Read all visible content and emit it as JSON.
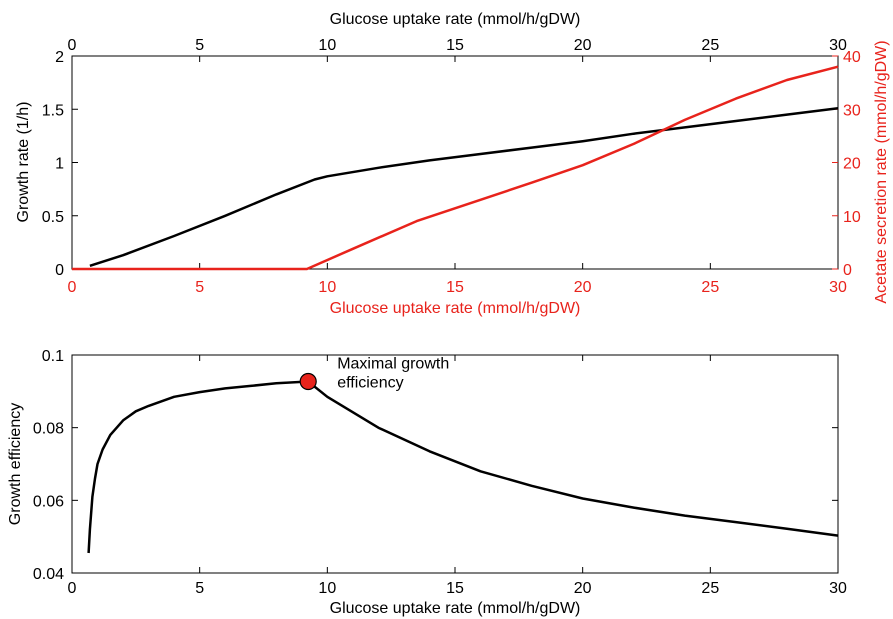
{
  "chart_data": [
    {
      "type": "line",
      "top_xlabel": "Glucose uptake rate (mmol/h/gDW)",
      "xlabel": "Glucose uptake rate (mmol/h/gDW)",
      "ylabel": "Growth rate (1/h)",
      "y2label": "Acetate secretion rate (mmol/h/gDW)",
      "xlim": [
        0,
        30
      ],
      "ylim": [
        0,
        2
      ],
      "y2lim": [
        0,
        40
      ],
      "x_ticks": [
        "0",
        "5",
        "10",
        "15",
        "20",
        "25",
        "30"
      ],
      "y_ticks": [
        "0",
        "0.5",
        "1",
        "1.5",
        "2"
      ],
      "y2_ticks": [
        "0",
        "10",
        "20",
        "30",
        "40"
      ],
      "grid": false,
      "colors": {
        "growth": "#000000",
        "acetate": "#e8231c"
      },
      "series": [
        {
          "axis": "left",
          "color": "#000000",
          "x": [
            0.7,
            2,
            4,
            6,
            8,
            9.5,
            10,
            12,
            14,
            16,
            18,
            20,
            22,
            24,
            26,
            28,
            30
          ],
          "y": [
            0.03,
            0.13,
            0.31,
            0.5,
            0.7,
            0.84,
            0.87,
            0.95,
            1.02,
            1.08,
            1.14,
            1.2,
            1.27,
            1.33,
            1.39,
            1.45,
            1.51
          ]
        },
        {
          "axis": "right",
          "color": "#e8231c",
          "x": [
            0,
            9.2,
            11,
            13.5,
            16,
            18,
            20,
            22,
            24,
            26,
            28,
            30
          ],
          "y": [
            0,
            0,
            3.8,
            9.0,
            13.0,
            16.2,
            19.5,
            23.5,
            28.0,
            32.0,
            35.5,
            38.0
          ]
        }
      ]
    },
    {
      "type": "line",
      "xlabel": "Glucose uptake rate (mmol/h/gDW)",
      "ylabel": "Growth efficiency",
      "xlim": [
        0,
        30
      ],
      "ylim": [
        0.04,
        0.1
      ],
      "x_ticks": [
        "0",
        "5",
        "10",
        "15",
        "20",
        "25",
        "30"
      ],
      "y_ticks": [
        "0.04",
        "0.06",
        "0.08",
        "0.1"
      ],
      "grid": false,
      "series": [
        {
          "color": "#000000",
          "x": [
            0.65,
            0.7,
            0.8,
            0.9,
            1.0,
            1.2,
            1.5,
            2,
            2.5,
            3,
            4,
            5,
            6,
            7,
            8,
            9.25,
            10,
            12,
            14,
            16,
            18,
            20,
            22,
            24,
            26,
            28,
            30
          ],
          "y": [
            0.0455,
            0.052,
            0.061,
            0.066,
            0.07,
            0.074,
            0.078,
            0.082,
            0.0845,
            0.086,
            0.0885,
            0.0898,
            0.0908,
            0.0915,
            0.0922,
            0.0927,
            0.0885,
            0.08,
            0.0735,
            0.068,
            0.064,
            0.0605,
            0.058,
            0.0558,
            0.054,
            0.0522,
            0.0503
          ]
        }
      ],
      "annotation": {
        "text_line1": "Maximal growth",
        "text_line2": "efficiency",
        "x": 9.25,
        "y": 0.0927,
        "marker_color": "#e8231c"
      }
    }
  ]
}
